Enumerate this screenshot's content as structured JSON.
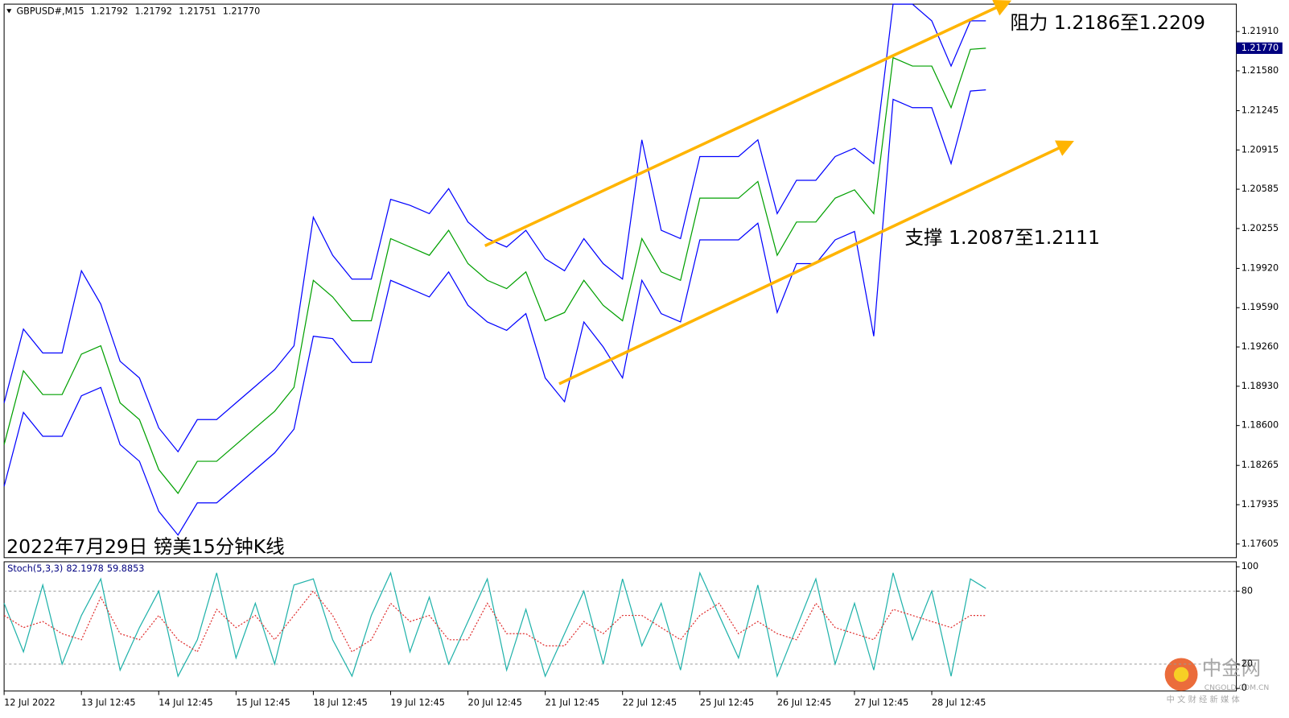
{
  "chart_data": [
    {
      "type": "line",
      "title": "2022年7月29日 镑美15分钟K线",
      "symbol": "GBPUSD#,M15",
      "ohlc": [
        1.21792,
        1.21792,
        1.21751,
        {
          "value": 1.2177,
          "label": "1.21770"
        }
      ],
      "annotations": [
        "阻力 1.2186至1.2209",
        "支撑 1.2087至1.2111"
      ],
      "x": [
        0,
        0.25,
        0.5,
        0.75,
        1,
        1.25,
        1.5,
        1.75,
        2,
        2.25,
        2.5,
        2.75,
        3,
        3.25,
        3.5,
        3.75,
        4,
        4.25,
        4.5,
        4.75,
        5,
        5.25,
        5.5,
        5.75,
        6,
        6.25,
        6.5,
        6.75,
        7,
        7.25,
        7.5,
        7.75,
        8,
        8.25,
        8.5,
        8.75,
        9,
        9.25,
        9.5,
        9.75,
        10,
        10.25,
        10.5,
        10.75,
        11,
        11.25,
        11.5,
        11.75,
        12,
        12.25,
        12.5,
        12.7
      ],
      "xlim": [
        0,
        15.94
      ],
      "xticks": [
        {
          "value": 0,
          "label": "12 Jul 2022"
        },
        {
          "value": 1,
          "label": "13 Jul 12:45"
        },
        {
          "value": 2,
          "label": "14 Jul 12:45"
        },
        {
          "value": 3,
          "label": "15 Jul 12:45"
        },
        {
          "value": 4,
          "label": "18 Jul 12:45"
        },
        {
          "value": 5,
          "label": "19 Jul 12:45"
        },
        {
          "value": 6,
          "label": "20 Jul 12:45"
        },
        {
          "value": 7,
          "label": "21 Jul 12:45"
        },
        {
          "value": 8,
          "label": "22 Jul 12:45"
        },
        {
          "value": 9,
          "label": "25 Jul 12:45"
        },
        {
          "value": 10,
          "label": "26 Jul 12:45"
        },
        {
          "value": 11,
          "label": "27 Jul 12:45"
        },
        {
          "value": 12,
          "label": "28 Jul 12:45"
        }
      ],
      "ylim": [
        1.1749,
        1.2214
      ],
      "yticks": [
        {
          "value": 1.2191,
          "label": "1.21910"
        },
        {
          "value": 1.2158,
          "label": "1.21580"
        },
        1.21245,
        1.20915,
        1.20585,
        1.20255,
        {
          "value": 1.1992,
          "label": "1.19920"
        },
        {
          "value": 1.1959,
          "label": "1.19590"
        },
        {
          "value": 1.1926,
          "label": "1.19260"
        },
        {
          "value": 1.1893,
          "label": "1.18930"
        },
        {
          "value": 1.186,
          "label": "1.18600"
        },
        1.18265,
        1.17935,
        1.17605
      ],
      "last_price": {
        "value": 1.2177,
        "label": "1.21770"
      },
      "series": [
        {
          "color": "#0000ff",
          "values": [
            1.1879,
            1.1941,
            1.1921,
            1.1921,
            1.199,
            1.1962,
            1.1914,
            1.19,
            1.1858,
            1.1838,
            1.1865,
            1.1865,
            1.1879,
            1.1893,
            1.1907,
            1.1927,
            1.2035,
            1.2003,
            1.1983,
            1.1983,
            1.205,
            1.2045,
            1.2038,
            1.2059,
            1.2031,
            1.2017,
            1.201,
            1.2024,
            1.2,
            1.199,
            1.2017,
            1.1996,
            1.1983,
            1.21,
            1.2024,
            1.2017,
            1.2086,
            1.2086,
            1.2086,
            1.21,
            1.2038,
            1.2066,
            1.2066,
            1.2086,
            1.2093,
            1.208,
            1.2214,
            1.2214,
            1.22,
            1.2162,
            1.22,
            1.22
          ]
        },
        {
          "color": "#00a000",
          "values": [
            1.1844,
            1.1906,
            1.1886,
            1.1886,
            1.192,
            1.1927,
            1.1879,
            1.1865,
            1.1823,
            1.1803,
            1.183,
            1.183,
            1.1844,
            1.1858,
            1.1872,
            1.1892,
            1.1982,
            1.1968,
            1.1948,
            1.1948,
            1.2017,
            1.201,
            1.2003,
            1.2024,
            1.1996,
            1.1982,
            1.1975,
            1.1989,
            1.1948,
            1.1955,
            1.1982,
            1.1961,
            1.1948,
            1.2017,
            1.1989,
            1.1982,
            1.2051,
            1.2051,
            1.2051,
            1.2065,
            1.2003,
            1.2031,
            1.2031,
            1.2051,
            1.2058,
            1.2038,
            1.2169,
            1.2162,
            1.2162,
            1.2127,
            1.2176,
            1.2177
          ]
        },
        {
          "color": "#0000ff",
          "values": [
            1.1809,
            1.1871,
            1.1851,
            1.1851,
            1.1885,
            1.1892,
            1.1844,
            1.183,
            1.1788,
            1.1768,
            1.1795,
            1.1795,
            1.1809,
            1.1823,
            1.1837,
            1.1857,
            1.1935,
            1.1933,
            1.1913,
            1.1913,
            1.1982,
            1.1975,
            1.1968,
            1.1989,
            1.1961,
            1.1947,
            1.194,
            1.1954,
            1.19,
            1.188,
            1.1947,
            1.1926,
            1.19,
            1.1982,
            1.1954,
            1.1947,
            1.2016,
            1.2016,
            1.2016,
            1.203,
            1.1955,
            1.1996,
            1.1996,
            1.2016,
            1.2023,
            1.1935,
            1.2134,
            1.2127,
            1.2127,
            1.208,
            1.2141,
            1.2142
          ]
        }
      ],
      "trendlines": [
        {
          "color": "#ffb400",
          "x": [
            6.22,
            12.93
          ],
          "y": [
            1.2011,
            1.2214
          ]
        },
        {
          "color": "#ffb400",
          "x": [
            7.18,
            13.74
          ],
          "y": [
            1.1895,
            1.2096
          ]
        }
      ]
    },
    {
      "type": "line",
      "title": "Stoch(5,3,3)",
      "header_values": [
        82.1978,
        59.8853
      ],
      "x": [
        0,
        0.25,
        0.5,
        0.75,
        1,
        1.25,
        1.5,
        1.75,
        2,
        2.25,
        2.5,
        2.75,
        3,
        3.25,
        3.5,
        3.75,
        4,
        4.25,
        4.5,
        4.75,
        5,
        5.25,
        5.5,
        5.75,
        6,
        6.25,
        6.5,
        6.75,
        7,
        7.25,
        7.5,
        7.75,
        8,
        8.25,
        8.5,
        8.75,
        9,
        9.25,
        9.5,
        9.75,
        10,
        10.25,
        10.5,
        10.75,
        11,
        11.25,
        11.5,
        11.75,
        12,
        12.25,
        12.5,
        12.7
      ],
      "xlim": [
        0,
        15.94
      ],
      "ylim": [
        -2.1,
        104.1
      ],
      "yticks": [
        100,
        80,
        20,
        0
      ],
      "levels": [
        80,
        20
      ],
      "series": [
        {
          "color": "#20b2aa",
          "values": [
            70,
            30,
            85,
            20,
            60,
            90,
            15,
            50,
            80,
            10,
            40,
            95,
            25,
            70,
            20,
            85,
            90,
            40,
            10,
            60,
            95,
            30,
            75,
            20,
            55,
            90,
            15,
            65,
            10,
            45,
            80,
            20,
            90,
            35,
            70,
            15,
            95,
            60,
            25,
            85,
            10,
            50,
            90,
            20,
            70,
            15,
            95,
            40,
            80,
            10,
            90,
            82.1978
          ]
        },
        {
          "color": "#e03030",
          "dashed": true,
          "values": [
            60,
            50,
            55,
            45,
            40,
            75,
            45,
            40,
            60,
            40,
            30,
            65,
            50,
            60,
            40,
            60,
            80,
            60,
            30,
            40,
            70,
            55,
            60,
            40,
            40,
            70,
            45,
            45,
            35,
            35,
            55,
            45,
            60,
            60,
            50,
            40,
            60,
            70,
            45,
            55,
            45,
            40,
            70,
            50,
            45,
            40,
            65,
            60,
            55,
            50,
            60,
            59.8853
          ]
        }
      ]
    }
  ],
  "logo": {
    "name": "中金网",
    "url": "CNGOLD.COM.CN",
    "tagline": "中 文 财 经 新 媒 体"
  }
}
